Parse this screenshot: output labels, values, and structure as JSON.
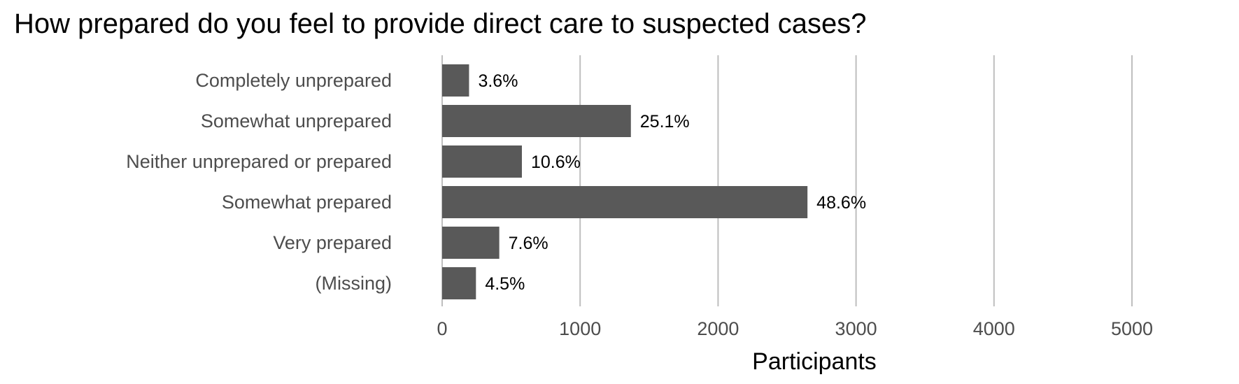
{
  "chart_data": {
    "type": "bar",
    "orientation": "horizontal",
    "title": "How prepared do you feel to provide direct care to suspected cases?",
    "xlabel": "Participants",
    "ylabel": "",
    "xlim": [
      0,
      5600
    ],
    "xticks": [
      0,
      1000,
      2000,
      3000,
      4000,
      5000
    ],
    "xtick_labels": [
      "0",
      "1000",
      "2000",
      "3000",
      "4000",
      "5000"
    ],
    "grid": "vertical major gridlines",
    "categories": [
      "Completely unprepared",
      "Somewhat unprepared",
      "Neither unprepared or prepared",
      "Somewhat prepared",
      "Very prepared",
      "(Missing)"
    ],
    "values": [
      195,
      1368,
      578,
      2648,
      414,
      245
    ],
    "data_labels": [
      "3.6%",
      "25.1%",
      "10.6%",
      "48.6%",
      "7.6%",
      "4.5%"
    ],
    "bar_color": "#595959",
    "grid_color": "#bebebe"
  }
}
